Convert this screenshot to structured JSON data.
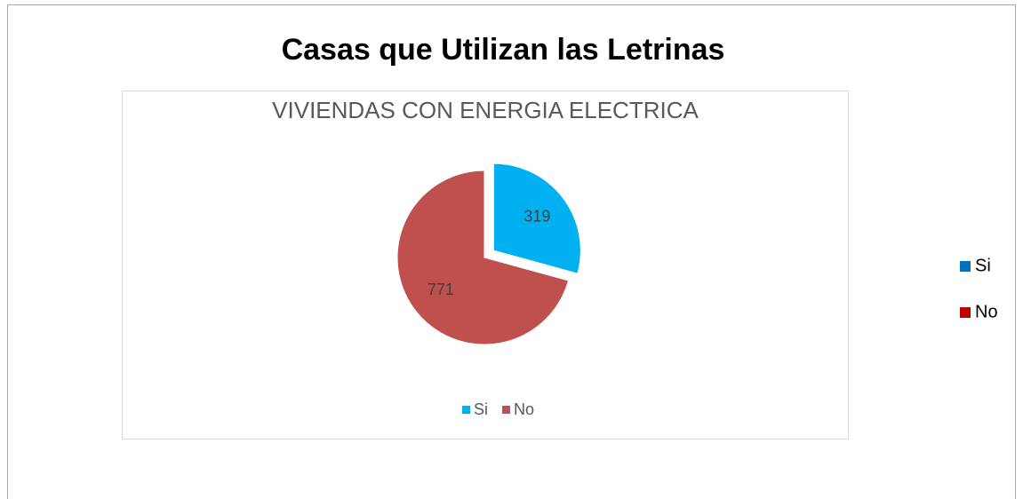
{
  "chart_data": [
    {
      "type": "pie",
      "title": "Casas que Utilizan las Letrinas",
      "categories": [
        "Si",
        "No"
      ],
      "colors": [
        "#0070c0",
        "#c00000"
      ],
      "legend": "right"
    },
    {
      "type": "pie",
      "title": "VIVIENDAS CON ENERGIA ELECTRICA",
      "categories": [
        "Si",
        "No"
      ],
      "values": [
        319,
        771
      ],
      "colors": [
        "#00b0f0",
        "#c0504d"
      ],
      "explode": [
        true,
        false
      ],
      "legend": "bottom"
    }
  ]
}
